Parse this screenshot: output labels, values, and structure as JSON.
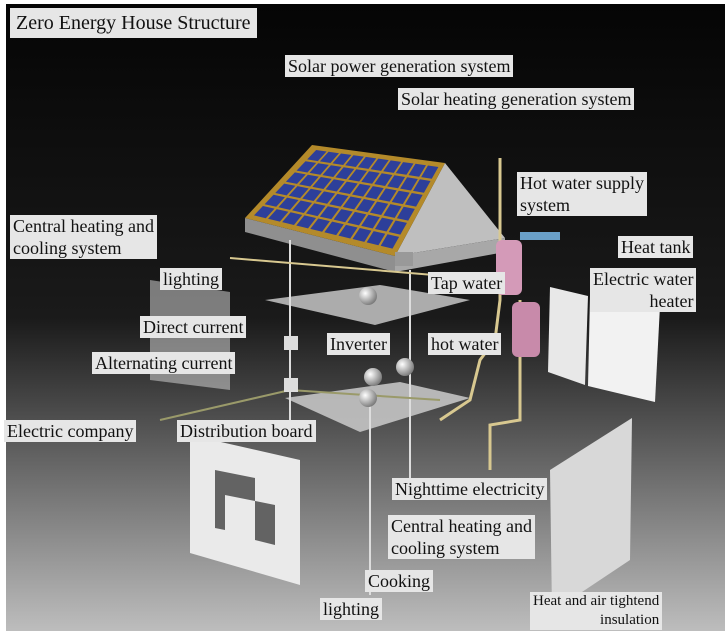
{
  "title": "Zero Energy House Structure",
  "labels": [
    {
      "lines": [
        "Solar power generation system"
      ]
    },
    {
      "lines": [
        "Solar heating generation system"
      ]
    },
    {
      "lines": [
        "Hot water supply",
        "system"
      ]
    },
    {
      "lines": [
        "Central heating and",
        "cooling system"
      ]
    },
    {
      "lines": [
        "Heat tank"
      ]
    },
    {
      "lines": [
        "lighting"
      ]
    },
    {
      "lines": [
        "Tap water"
      ]
    },
    {
      "lines": [
        "Electric water",
        "heater"
      ]
    },
    {
      "lines": [
        "Direct current"
      ]
    },
    {
      "lines": [
        "Inverter"
      ]
    },
    {
      "lines": [
        "hot water"
      ]
    },
    {
      "lines": [
        "Alternating current"
      ]
    },
    {
      "lines": [
        "Electric company"
      ]
    },
    {
      "lines": [
        "Distribution board"
      ]
    },
    {
      "lines": [
        "Nighttime electricity"
      ]
    },
    {
      "lines": [
        "Central heating and",
        "cooling system"
      ]
    },
    {
      "lines": [
        "Cooking"
      ]
    },
    {
      "lines": [
        "lighting"
      ]
    },
    {
      "lines": [
        "Heat and air tightend",
        "insulation"
      ]
    }
  ]
}
